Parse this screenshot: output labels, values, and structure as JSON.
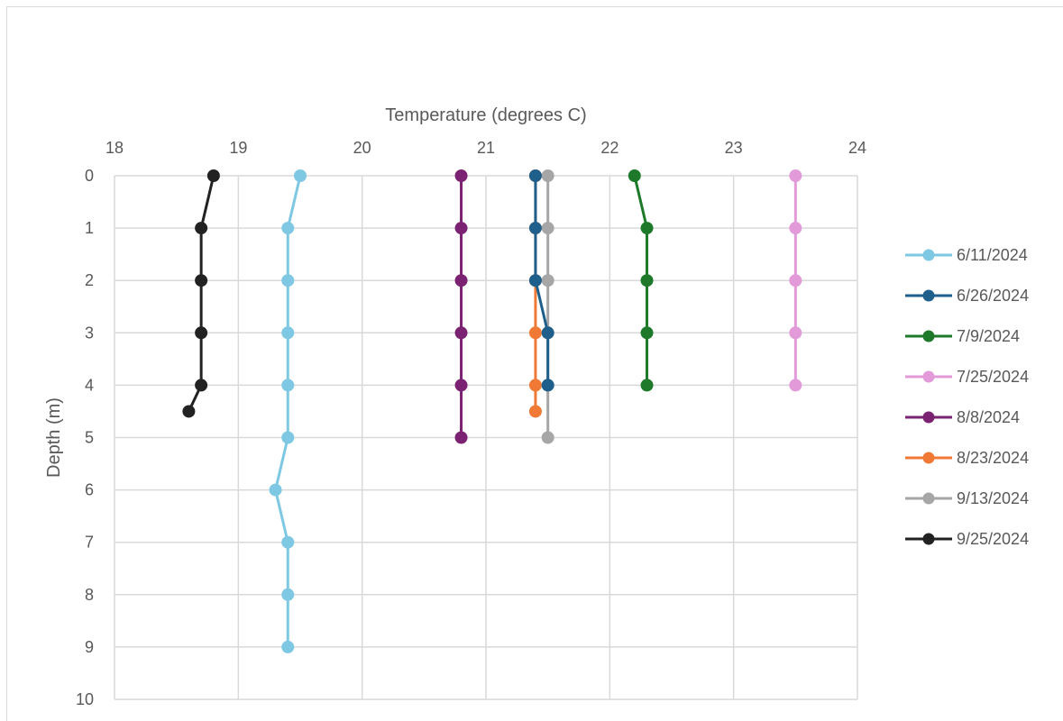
{
  "chart_data": {
    "type": "scatter",
    "mode": "lines+markers",
    "xlabel": "Temperature (degrees C)",
    "ylabel": "Depth (m)",
    "xlim": [
      18,
      24
    ],
    "ylim": [
      0,
      10
    ],
    "y_reversed": true,
    "x_axis_position": "top",
    "x_ticks": [
      18,
      19,
      20,
      21,
      22,
      23,
      24
    ],
    "y_ticks": [
      0,
      1,
      2,
      3,
      4,
      5,
      6,
      7,
      8,
      9,
      10
    ],
    "grid": true,
    "legend_position": "right",
    "series": [
      {
        "name": "6/11/2024",
        "color": "#7ec8e3",
        "points": [
          {
            "x": 19.5,
            "y": 0
          },
          {
            "x": 19.4,
            "y": 1
          },
          {
            "x": 19.4,
            "y": 2
          },
          {
            "x": 19.4,
            "y": 3
          },
          {
            "x": 19.4,
            "y": 4
          },
          {
            "x": 19.4,
            "y": 5
          },
          {
            "x": 19.3,
            "y": 6
          },
          {
            "x": 19.4,
            "y": 7
          },
          {
            "x": 19.4,
            "y": 8
          },
          {
            "x": 19.4,
            "y": 9
          }
        ]
      },
      {
        "name": "6/26/2024",
        "color": "#1f5f8b",
        "points": [
          {
            "x": 21.4,
            "y": 0
          },
          {
            "x": 21.4,
            "y": 1
          },
          {
            "x": 21.4,
            "y": 2
          },
          {
            "x": 21.5,
            "y": 3
          },
          {
            "x": 21.5,
            "y": 4
          }
        ]
      },
      {
        "name": "7/9/2024",
        "color": "#1e7a2a",
        "points": [
          {
            "x": 22.2,
            "y": 0
          },
          {
            "x": 22.3,
            "y": 1
          },
          {
            "x": 22.3,
            "y": 2
          },
          {
            "x": 22.3,
            "y": 3
          },
          {
            "x": 22.3,
            "y": 4
          }
        ]
      },
      {
        "name": "7/25/2024",
        "color": "#e39ad9",
        "points": [
          {
            "x": 23.5,
            "y": 0
          },
          {
            "x": 23.5,
            "y": 1
          },
          {
            "x": 23.5,
            "y": 2
          },
          {
            "x": 23.5,
            "y": 3
          },
          {
            "x": 23.5,
            "y": 4
          }
        ]
      },
      {
        "name": "8/8/2024",
        "color": "#7b2372",
        "points": [
          {
            "x": 20.8,
            "y": 0
          },
          {
            "x": 20.8,
            "y": 1
          },
          {
            "x": 20.8,
            "y": 2
          },
          {
            "x": 20.8,
            "y": 3
          },
          {
            "x": 20.8,
            "y": 4
          },
          {
            "x": 20.8,
            "y": 5
          }
        ]
      },
      {
        "name": "8/23/2024",
        "color": "#f07a35",
        "points": [
          {
            "x": 21.4,
            "y": 0
          },
          {
            "x": 21.4,
            "y": 1
          },
          {
            "x": 21.4,
            "y": 2
          },
          {
            "x": 21.4,
            "y": 3
          },
          {
            "x": 21.4,
            "y": 4
          },
          {
            "x": 21.4,
            "y": 4.5
          }
        ]
      },
      {
        "name": "9/13/2024",
        "color": "#a6a6a6",
        "points": [
          {
            "x": 21.5,
            "y": 0
          },
          {
            "x": 21.5,
            "y": 1
          },
          {
            "x": 21.5,
            "y": 2
          },
          {
            "x": 21.5,
            "y": 3
          },
          {
            "x": 21.5,
            "y": 4
          },
          {
            "x": 21.5,
            "y": 5
          }
        ]
      },
      {
        "name": "9/25/2024",
        "color": "#222222",
        "points": [
          {
            "x": 18.8,
            "y": 0
          },
          {
            "x": 18.7,
            "y": 1
          },
          {
            "x": 18.7,
            "y": 2
          },
          {
            "x": 18.7,
            "y": 3
          },
          {
            "x": 18.7,
            "y": 4
          },
          {
            "x": 18.6,
            "y": 4.5
          }
        ]
      }
    ],
    "draw_order": [
      0,
      4,
      5,
      6,
      1,
      2,
      3,
      7
    ]
  },
  "colors": {
    "grid": "#d9d9d9",
    "axis_text": "#595959"
  }
}
